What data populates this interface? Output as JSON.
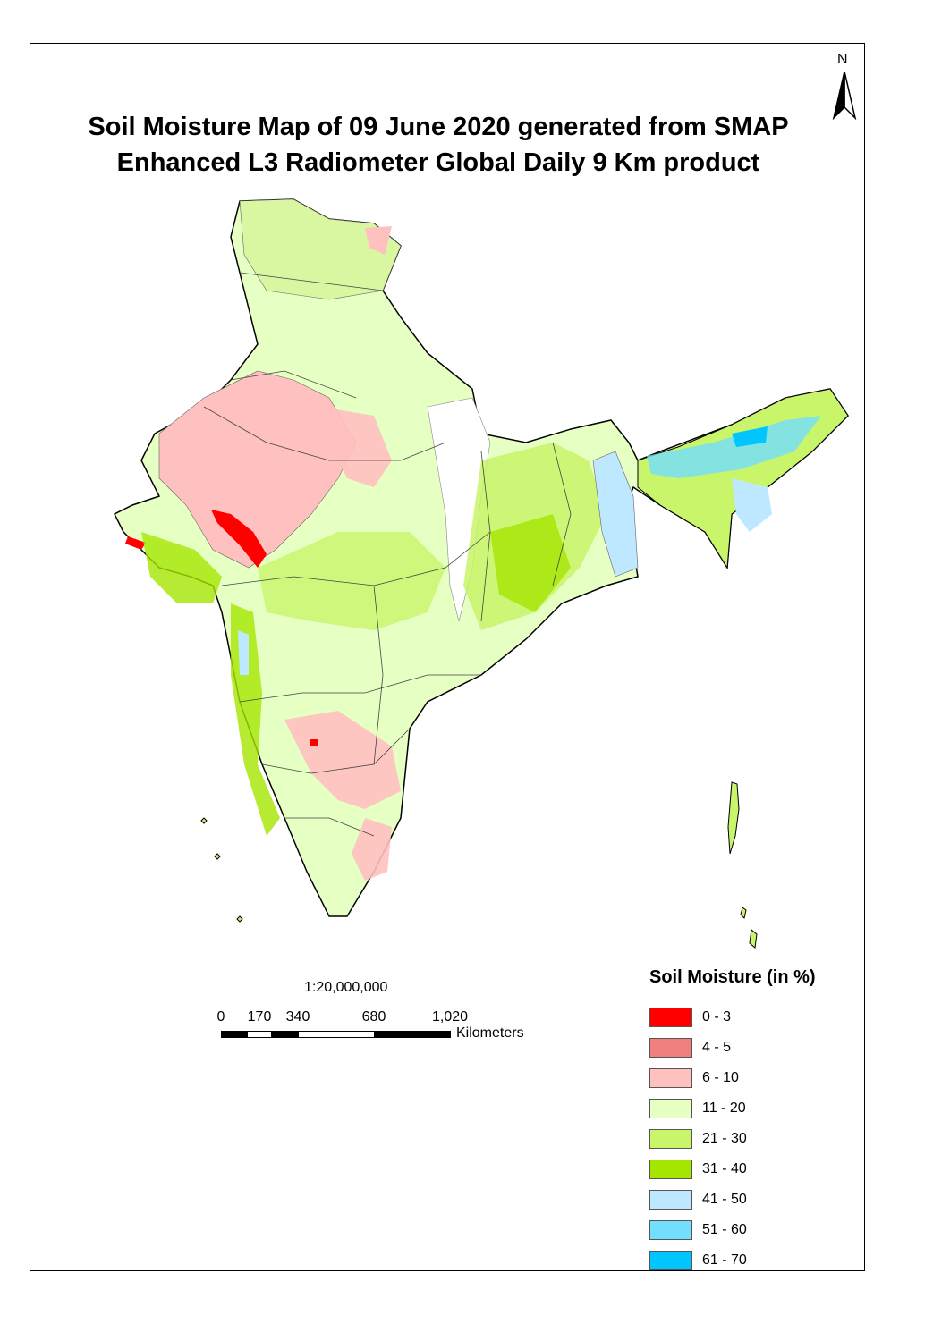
{
  "title": {
    "line1": "Soil Moisture Map of 09 June 2020 generated from SMAP",
    "line2": "Enhanced L3 Radiometer Global Daily 9 Km product"
  },
  "north_arrow": {
    "label": "N"
  },
  "scale": {
    "ratio": "1:20,000,000",
    "ticks": [
      "0",
      "170",
      "340",
      "680",
      "1,020"
    ],
    "units": "Kilometers"
  },
  "legend": {
    "title": "Soil Moisture (in %)",
    "items": [
      {
        "label": "0 - 3",
        "color": "#ff0000"
      },
      {
        "label": "4 - 5",
        "color": "#f08080"
      },
      {
        "label": "6 - 10",
        "color": "#ffc0c0"
      },
      {
        "label": "11 - 20",
        "color": "#e6ffc2"
      },
      {
        "label": "21 - 30",
        "color": "#c8f56a"
      },
      {
        "label": "31 - 40",
        "color": "#a5e600"
      },
      {
        "label": "41 - 50",
        "color": "#bee8ff"
      },
      {
        "label": "51 - 60",
        "color": "#73dfff"
      },
      {
        "label": "61 - 70",
        "color": "#00c5ff"
      }
    ]
  }
}
